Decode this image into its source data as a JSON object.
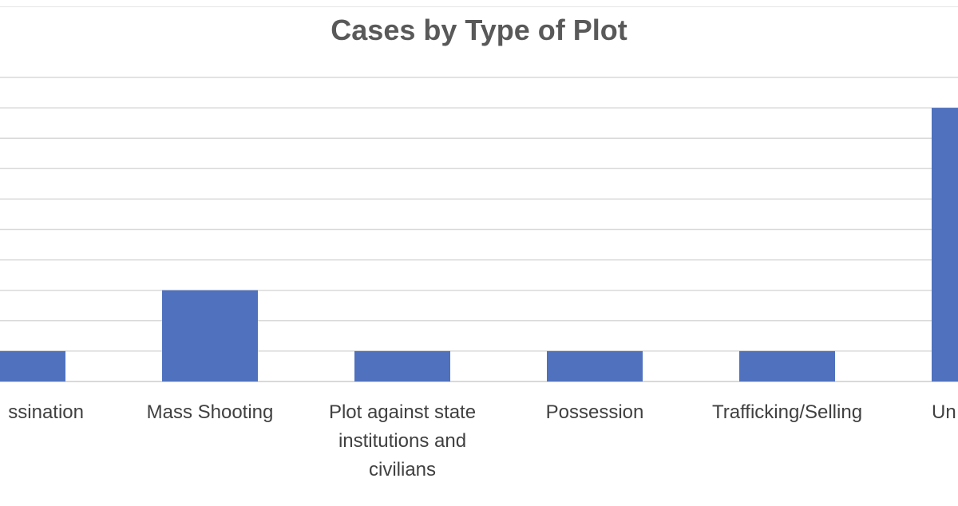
{
  "chart_data": {
    "type": "bar",
    "title": "Cases by Type of Plot",
    "categories": [
      [
        "ssination"
      ],
      [
        "Mass Shooting"
      ],
      [
        "Plot against state",
        "institutions and",
        "civilians"
      ],
      [
        "Possession"
      ],
      [
        "Trafficking/Selling"
      ],
      [
        "Un"
      ]
    ],
    "values": [
      1,
      3,
      1,
      1,
      1,
      9
    ],
    "ylim": [
      0,
      10
    ],
    "grid": true,
    "legend": "none",
    "bar_color": "#4f71be",
    "grid_color": "#d9d9d9"
  }
}
